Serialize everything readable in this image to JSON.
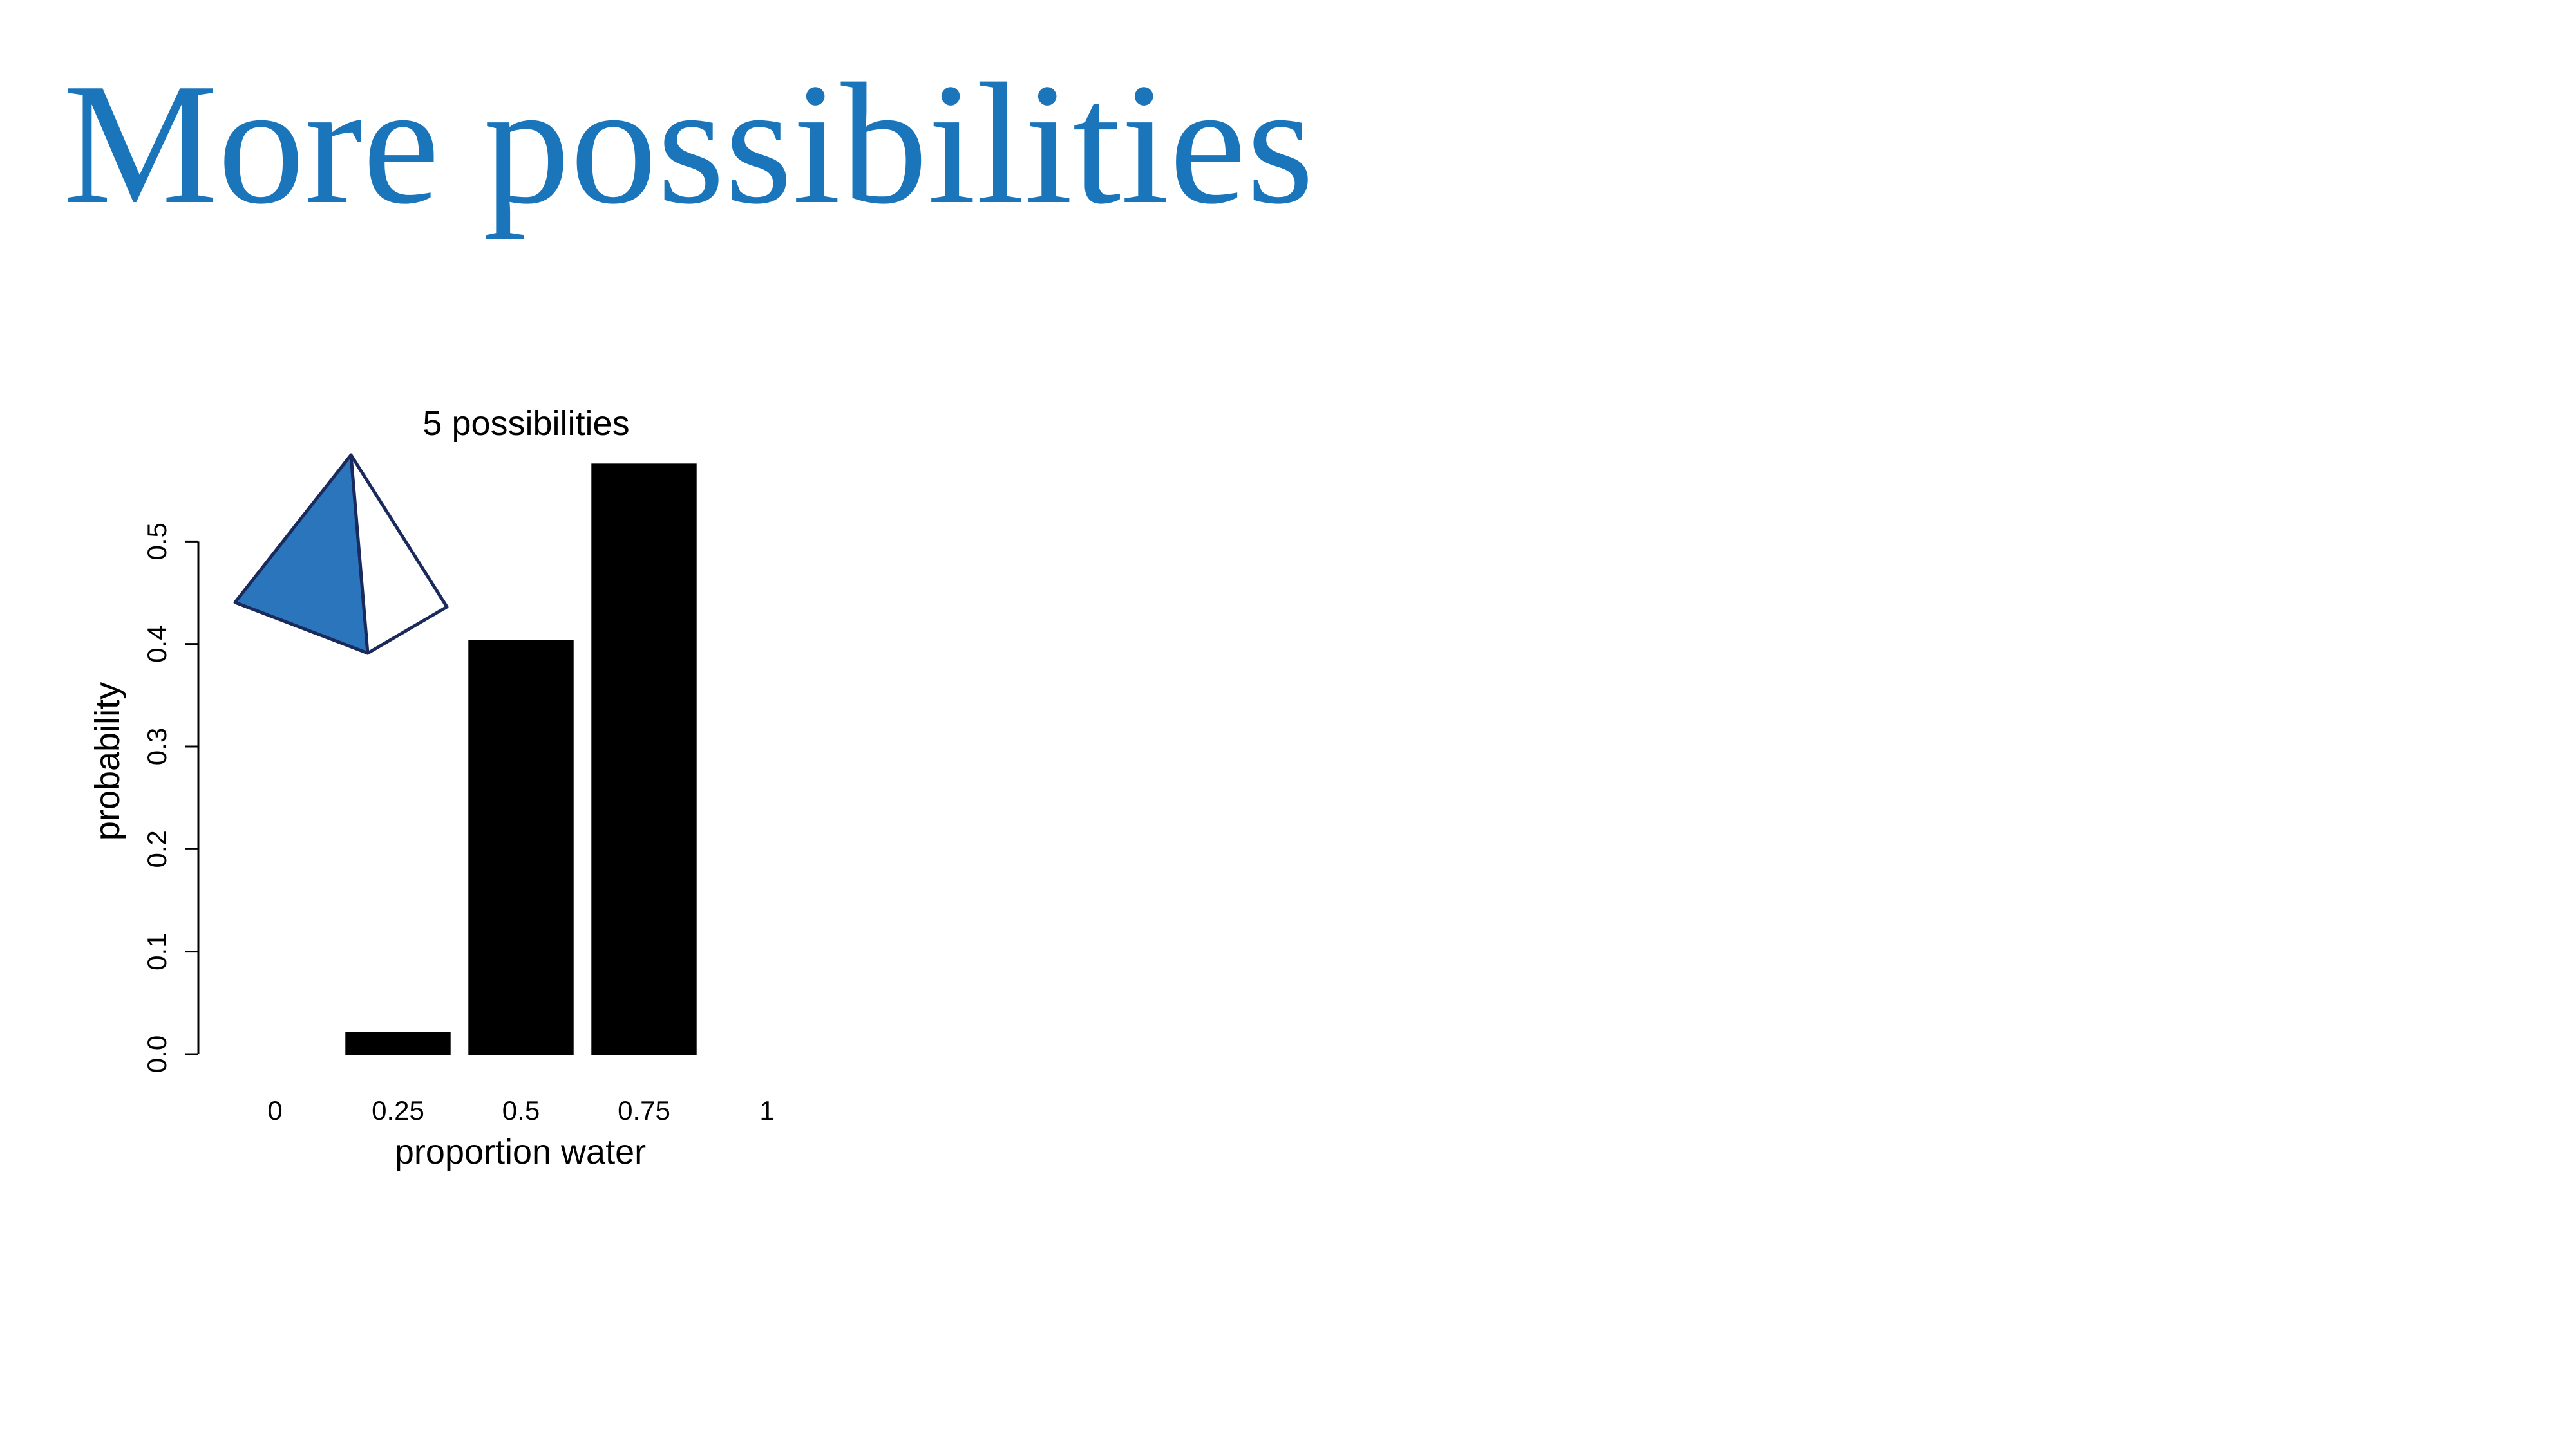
{
  "slide": {
    "title": "More possibilities"
  },
  "chart_data": {
    "type": "bar",
    "title": "5 possibilities",
    "categories": [
      "0",
      "0.25",
      "0.5",
      "0.75",
      "1"
    ],
    "values": [
      0,
      0.021,
      0.403,
      0.575,
      0
    ],
    "color": "#000000",
    "xlabel": "proportion water",
    "ylabel": "probability",
    "ylim": [
      0,
      0.6
    ],
    "yticks": [
      {
        "value": 0,
        "label": "0.0"
      },
      0.1,
      0.2,
      0.3,
      0.4,
      0.5
    ],
    "grid": false
  }
}
